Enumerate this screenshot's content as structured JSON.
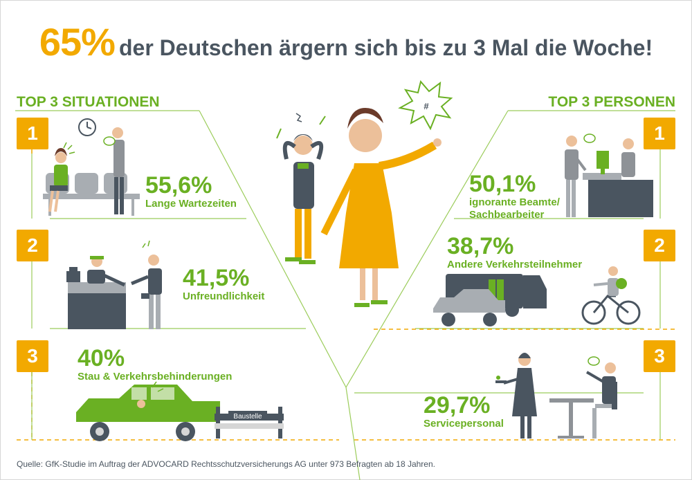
{
  "headline": {
    "percent": "65%",
    "text": "der Deutschen ärgern sich bis zu 3 Mal die Woche!"
  },
  "left_section": {
    "title": "TOP 3 SITUATIONEN",
    "items": [
      {
        "rank": "1",
        "percent": "55,6%",
        "label": "Lange Wartezeiten"
      },
      {
        "rank": "2",
        "percent": "41,5%",
        "label": "Unfreundlichkeit"
      },
      {
        "rank": "3",
        "percent": "40%",
        "label": "Stau & Verkehrsbehinderungen"
      }
    ]
  },
  "right_section": {
    "title": "TOP 3 PERSONEN",
    "items": [
      {
        "rank": "1",
        "percent": "50,1%",
        "label_line1": "ignorante Beamte/",
        "label_line2": "Sachbearbeiter"
      },
      {
        "rank": "2",
        "percent": "38,7%",
        "label": "Andere Verkehrsteilnehmer"
      },
      {
        "rank": "3",
        "percent": "29,7%",
        "label": "Servicepersonal"
      }
    ]
  },
  "baustelle_sign": "Baustelle",
  "footer": "Quelle: GfK-Studie im Auftrag der ADVOCARD Rechtsschutzversicherungs AG unter 973 Befragten ab 18 Jahren.",
  "colors": {
    "orange": "#f2a900",
    "green": "#6ab023",
    "slate": "#4a5560",
    "grey": "#9a9ea3"
  },
  "icons": [
    "clock-icon",
    "anger-spark-icon",
    "angry-speech-bubble-icon",
    "cash-register-icon"
  ]
}
